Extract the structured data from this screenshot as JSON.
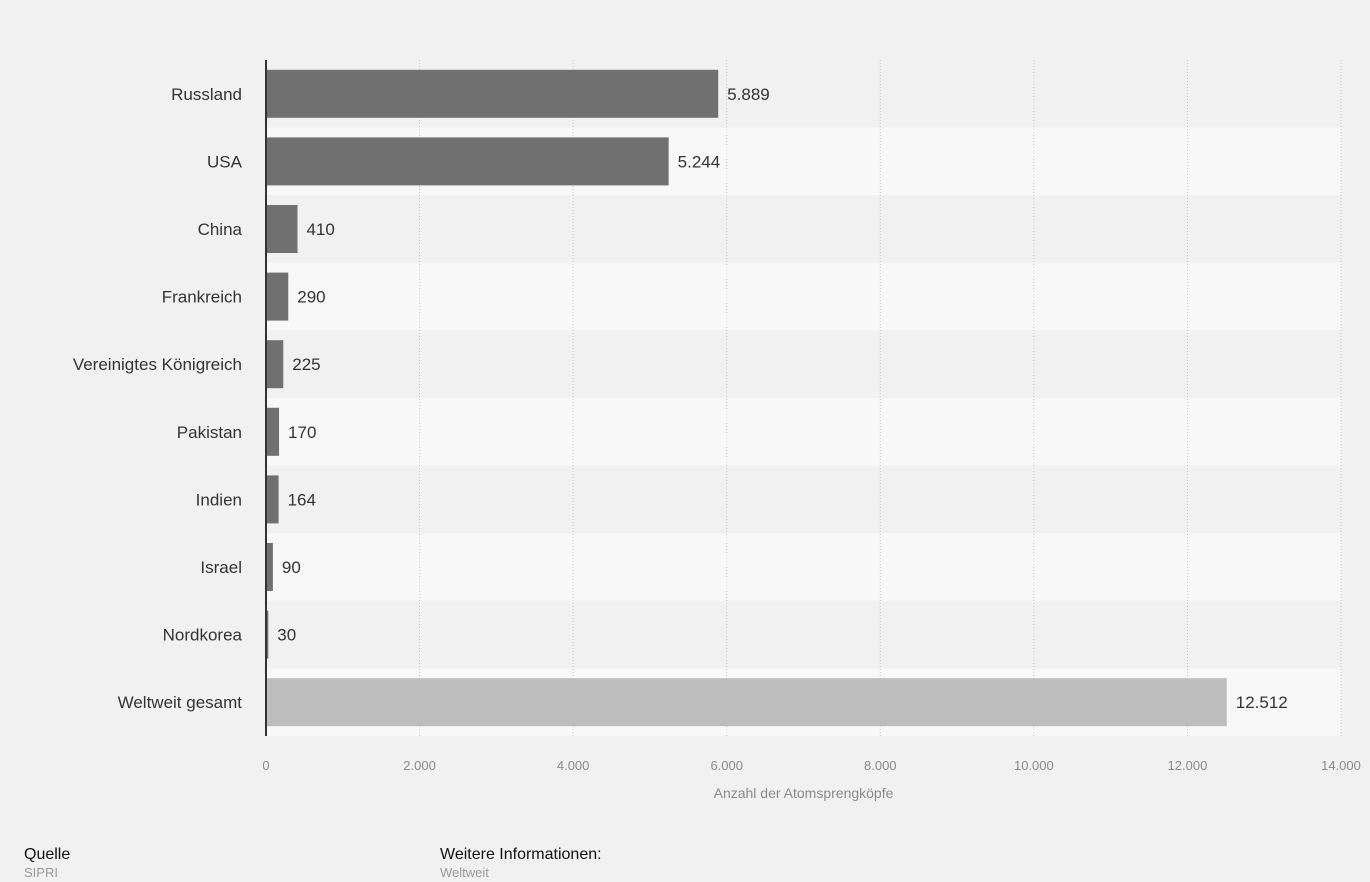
{
  "chart_data": {
    "type": "bar",
    "orientation": "horizontal",
    "title": "",
    "xlabel": "Anzahl der Atomsprengköpfe",
    "ylabel": "",
    "xlim": [
      0,
      14000
    ],
    "grid": true,
    "categories": [
      "Russland",
      "USA",
      "China",
      "Frankreich",
      "Vereinigtes Königreich",
      "Pakistan",
      "Indien",
      "Israel",
      "Nordkorea",
      "Weltweit gesamt"
    ],
    "values": [
      5889,
      5244,
      410,
      290,
      225,
      170,
      164,
      90,
      30,
      12512
    ],
    "value_labels": [
      "5.889",
      "5.244",
      "410",
      "290",
      "225",
      "170",
      "164",
      "90",
      "30",
      "12.512"
    ],
    "ticks": [
      0,
      2000,
      4000,
      6000,
      8000,
      10000,
      12000,
      14000
    ],
    "tick_labels": [
      "0",
      "2.000",
      "4.000",
      "6.000",
      "8.000",
      "10.000",
      "12.000",
      "14.000"
    ],
    "bar_colors": [
      "#707070",
      "#707070",
      "#707070",
      "#707070",
      "#707070",
      "#707070",
      "#707070",
      "#707070",
      "#707070",
      "#bdbdbd"
    ]
  },
  "colors": {
    "background": "#f1f1f1",
    "band_dark": "#f1f1f1",
    "band_light": "#f8f8f8",
    "axis": "#333333",
    "gridline": "#c8c8c8",
    "category_label": "#333333",
    "value_label": "#333333",
    "tick_label": "#8a8a8a"
  },
  "footer": {
    "source_heading": "Quelle",
    "source_value": "SIPRI",
    "info_heading": "Weitere Informationen:",
    "info_value": "Weltweit"
  }
}
